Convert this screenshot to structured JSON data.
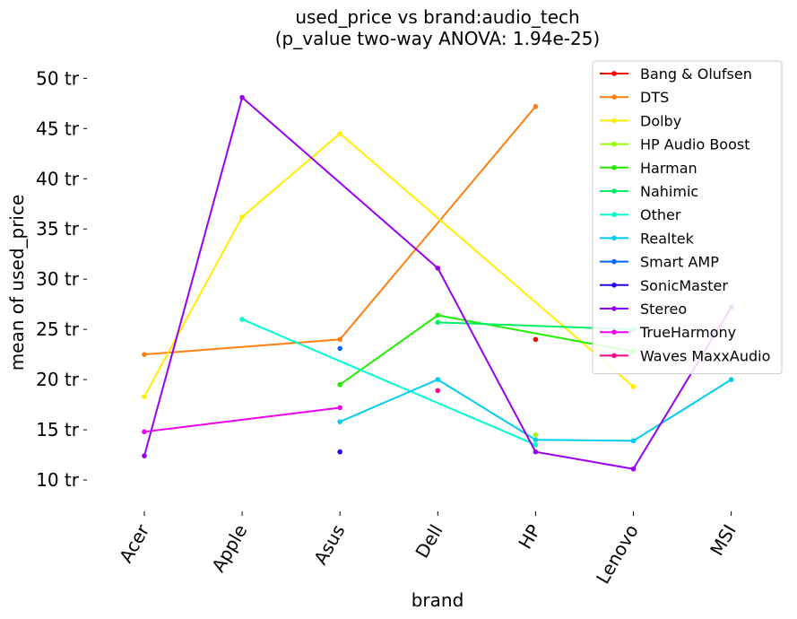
{
  "chart_data": {
    "type": "line",
    "title_line1": "used_price vs brand:audio_tech",
    "title_line2": "(p_value two-way ANOVA: 1.94e-25)",
    "xlabel": "brand",
    "ylabel": "mean of used_price",
    "categories": [
      "Acer",
      "Apple",
      "Asus",
      "Dell",
      "HP",
      "Lenovo",
      "MSI"
    ],
    "ylim": [
      7.5,
      52
    ],
    "yticks": [
      10,
      15,
      20,
      25,
      30,
      35,
      40,
      45,
      50
    ],
    "ytick_labels": [
      "10 tr",
      "15 tr",
      "20 tr",
      "25 tr",
      "30 tr",
      "35 tr",
      "40 tr",
      "45 tr",
      "50 tr"
    ],
    "grid": false,
    "legend_position": "top-right",
    "series": [
      {
        "name": "Bang & Olufsen",
        "color": "#ff0000",
        "values": [
          null,
          null,
          null,
          null,
          24.0,
          null,
          null
        ]
      },
      {
        "name": "DTS",
        "color": "#ff7f0e",
        "values": [
          22.5,
          null,
          24.0,
          null,
          47.2,
          null,
          null
        ]
      },
      {
        "name": "Dolby",
        "color": "#ffee00",
        "values": [
          18.3,
          36.2,
          44.5,
          null,
          null,
          19.3,
          null
        ]
      },
      {
        "name": "HP Audio Boost",
        "color": "#99ff00",
        "values": [
          null,
          null,
          null,
          null,
          14.5,
          null,
          null
        ]
      },
      {
        "name": "Harman",
        "color": "#22ee00",
        "values": [
          null,
          null,
          19.5,
          26.4,
          null,
          22.8,
          null
        ]
      },
      {
        "name": "Nahimic",
        "color": "#00ee66",
        "values": [
          null,
          null,
          null,
          25.7,
          null,
          25.0,
          null
        ]
      },
      {
        "name": "Other",
        "color": "#00ffcc",
        "values": [
          null,
          26.0,
          null,
          null,
          13.5,
          null,
          null
        ]
      },
      {
        "name": "Realtek",
        "color": "#00ccee",
        "values": [
          null,
          null,
          15.8,
          20.0,
          14.0,
          13.9,
          20.0
        ]
      },
      {
        "name": "Smart AMP",
        "color": "#0066ff",
        "values": [
          null,
          null,
          23.1,
          null,
          null,
          null,
          null
        ]
      },
      {
        "name": "SonicMaster",
        "color": "#2200ee",
        "values": [
          null,
          null,
          12.8,
          null,
          null,
          null,
          null
        ]
      },
      {
        "name": "Stereo",
        "color": "#9900ee",
        "values": [
          12.4,
          48.1,
          null,
          31.1,
          12.8,
          11.1,
          27.2
        ]
      },
      {
        "name": "TrueHarmony",
        "color": "#ee00ee",
        "values": [
          14.8,
          null,
          17.2,
          null,
          null,
          null,
          null
        ]
      },
      {
        "name": "Waves MaxxAudio",
        "color": "#ff0088",
        "values": [
          null,
          null,
          null,
          18.9,
          null,
          null,
          null
        ]
      }
    ]
  }
}
